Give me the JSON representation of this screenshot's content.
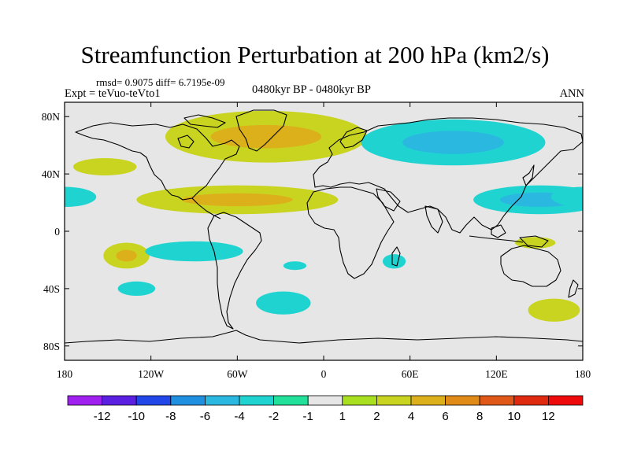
{
  "chart_data": {
    "type": "heatmap",
    "title": "Streamfunction Perturbation at 200 hPa (km2/s)",
    "stats": "rmsd= 0.9075 diff= 6.7195e-09",
    "experiment": "Expt = teVuo-teVto1",
    "period": "0480kyr BP - 0480kyr BP",
    "season": "ANN",
    "x_ticks": [
      "180",
      "120W",
      "60W",
      "0",
      "60E",
      "120E",
      "180"
    ],
    "x_tick_values": [
      -180,
      -120,
      -60,
      0,
      60,
      120,
      180
    ],
    "y_ticks": [
      "80N",
      "40N",
      "0",
      "40S",
      "80S"
    ],
    "y_tick_values": [
      80,
      40,
      0,
      -40,
      -80
    ],
    "xlim": [
      -180,
      180
    ],
    "ylim": [
      -90,
      90
    ],
    "colorbar": {
      "labels": [
        "-12",
        "-10",
        "-8",
        "-6",
        "-4",
        "-2",
        "-1",
        "1",
        "2",
        "4",
        "6",
        "8",
        "10",
        "12"
      ],
      "colors": [
        "#a020f0",
        "#5a1fe0",
        "#2147e8",
        "#1f8fe0",
        "#2ab8e0",
        "#1fd4d0",
        "#21e09a",
        "#e6e6e6",
        "#a8e01f",
        "#c8d41f",
        "#dcb01a",
        "#e08a18",
        "#e05818",
        "#e02a10",
        "#ee0a0a"
      ]
    },
    "features": [
      {
        "name": "North Atlantic / Greenland positive lobe",
        "lon": -40,
        "lat": 66,
        "level": 2,
        "core_level": 4
      },
      {
        "name": "Tropical Atlantic / Caribbean positive band",
        "lon": -60,
        "lat": 22,
        "level": 2,
        "core_level": 4
      },
      {
        "name": "Eurasian negative lobe",
        "lon": 90,
        "lat": 62,
        "level": -2,
        "core_level": -4
      },
      {
        "name": "North Pacific / East Asia negative band",
        "lon": 150,
        "lat": 22,
        "level": -2,
        "core_level": -4
      },
      {
        "name": "North Pacific east positive lobe",
        "lon": -152,
        "lat": 45,
        "level": 2
      },
      {
        "name": "Central Pacific negative patch",
        "lon": -180,
        "lat": 24,
        "level": -2
      },
      {
        "name": "South Pacific positive patch",
        "lon": -137,
        "lat": -17,
        "level": 2,
        "core_level": 4
      },
      {
        "name": "South Pacific negative band",
        "lon": -90,
        "lat": -14,
        "level": -2
      },
      {
        "name": "South Atlantic small negative",
        "lon": -20,
        "lat": -24,
        "level": -2
      },
      {
        "name": "Southern Ocean negative patch (Pacific)",
        "lon": -130,
        "lat": -40,
        "level": -2
      },
      {
        "name": "Southern Ocean negative patch (Atlantic)",
        "lon": -28,
        "lat": -50,
        "level": -2
      },
      {
        "name": "Madagascar negative patch",
        "lon": 49,
        "lat": -21,
        "level": -2
      },
      {
        "name": "Australia positive patch",
        "lon": 147,
        "lat": -8,
        "level": 2
      },
      {
        "name": "South Pacific near New Zealand positive",
        "lon": 160,
        "lat": -55,
        "level": 2
      }
    ]
  }
}
